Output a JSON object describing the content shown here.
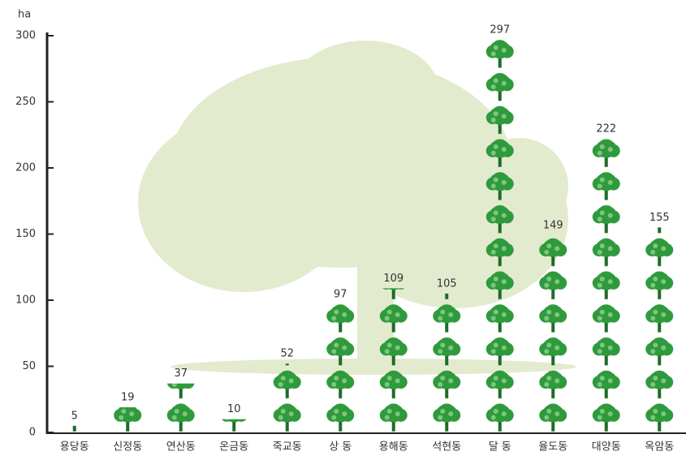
{
  "chart_data": {
    "type": "pictograph",
    "y_label": "ha",
    "categories": [
      "용당동",
      "신정동",
      "연산동",
      "온금동",
      "죽교동",
      "상 동",
      "용해동",
      "석현동",
      "달 동",
      "율도동",
      "대양동",
      "옥암동"
    ],
    "values": [
      5,
      19,
      37,
      10,
      52,
      97,
      109,
      105,
      297,
      149,
      222,
      155
    ],
    "color": "#2f9a3c",
    "ylim": [
      0,
      300
    ],
    "yticks": [
      0,
      50,
      100,
      150,
      200,
      250,
      300
    ]
  }
}
